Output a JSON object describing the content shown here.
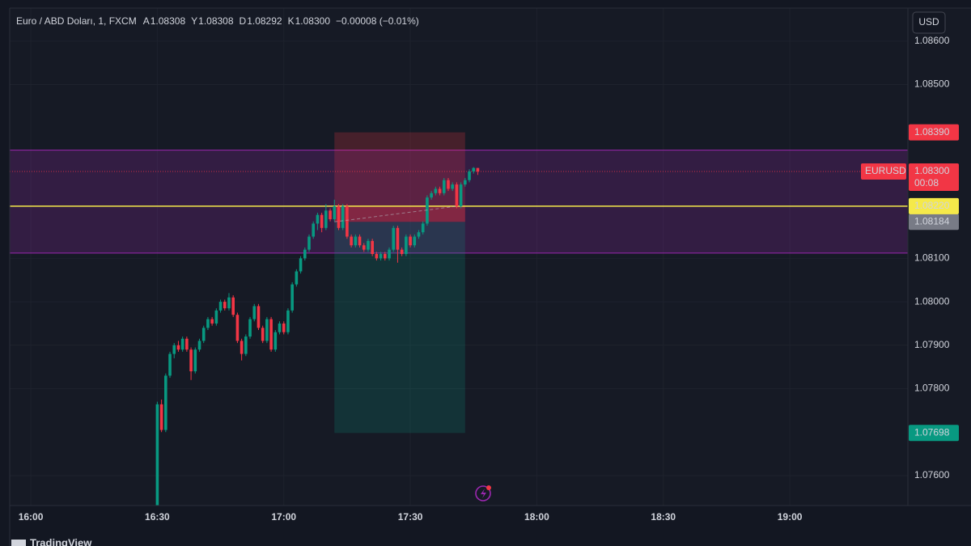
{
  "chart_data": {
    "type": "candlestick",
    "symbol_title": "Euro / ABD Doları, 1, FXCM",
    "header_fields": [
      {
        "label": "A",
        "value": "1.08308"
      },
      {
        "label": "Y",
        "value": "1.08308"
      },
      {
        "label": "D",
        "value": "1.08292"
      },
      {
        "label": "K",
        "value": "1.08300"
      }
    ],
    "change": "−0.00008 (−0.01%)",
    "currency": "USD",
    "brand": "TradingView",
    "up_color": "#089981",
    "down_color": "#f23645",
    "xlim": [
      "15:55",
      "19:28"
    ],
    "xticks": [
      "16:00",
      "16:30",
      "17:00",
      "17:30",
      "18:00",
      "18:30",
      "19:00"
    ],
    "ylim": [
      1.07531,
      1.08676
    ],
    "yticks": [
      {
        "value": 1.086,
        "label": "1.08600"
      },
      {
        "value": 1.085,
        "label": "1.08500"
      },
      {
        "value": 1.081,
        "label": "1.08100"
      },
      {
        "value": 1.08,
        "label": "1.08000"
      },
      {
        "value": 1.079,
        "label": "1.07900"
      },
      {
        "value": 1.078,
        "label": "1.07800"
      },
      {
        "value": 1.076,
        "label": "1.07600"
      }
    ],
    "grid": true,
    "x": [
      "16:30",
      "16:31",
      "16:32",
      "16:33",
      "16:34",
      "16:35",
      "16:36",
      "16:37",
      "16:38",
      "16:39",
      "16:40",
      "16:41",
      "16:42",
      "16:43",
      "16:44",
      "16:45",
      "16:46",
      "16:47",
      "16:48",
      "16:49",
      "16:50",
      "16:51",
      "16:52",
      "16:53",
      "16:54",
      "16:55",
      "16:56",
      "16:57",
      "16:58",
      "16:59",
      "17:00",
      "17:01",
      "17:02",
      "17:03",
      "17:04",
      "17:05",
      "17:06",
      "17:07",
      "17:08",
      "17:09",
      "17:10",
      "17:11",
      "17:12",
      "17:13",
      "17:14",
      "17:15",
      "17:16",
      "17:17",
      "17:18",
      "17:19",
      "17:20",
      "17:21",
      "17:22",
      "17:23",
      "17:24",
      "17:25",
      "17:26",
      "17:27",
      "17:28",
      "17:29",
      "17:30",
      "17:31",
      "17:32",
      "17:33",
      "17:34",
      "17:35",
      "17:36",
      "17:37",
      "17:38",
      "17:39",
      "17:40",
      "17:41",
      "17:42",
      "17:43",
      "17:44",
      "17:45",
      "17:46"
    ],
    "ohlc": [
      [
        1.07531,
        1.0777,
        1.07531,
        1.07764
      ],
      [
        1.07764,
        1.07775,
        1.077,
        1.07705
      ],
      [
        1.07705,
        1.07835,
        1.077,
        1.0783
      ],
      [
        1.0783,
        1.07885,
        1.07825,
        1.0788
      ],
      [
        1.0788,
        1.07905,
        1.0787,
        1.079
      ],
      [
        1.079,
        1.0791,
        1.07885,
        1.0789
      ],
      [
        1.0789,
        1.0792,
        1.07885,
        1.07915
      ],
      [
        1.07915,
        1.0792,
        1.07885,
        1.0789
      ],
      [
        1.0789,
        1.07895,
        1.0782,
        1.0784
      ],
      [
        1.0784,
        1.07895,
        1.07835,
        1.0789
      ],
      [
        1.0789,
        1.07915,
        1.07885,
        1.0791
      ],
      [
        1.0791,
        1.07945,
        1.07905,
        1.0794
      ],
      [
        1.0794,
        1.07965,
        1.07935,
        1.0796
      ],
      [
        1.0796,
        1.07965,
        1.07945,
        1.0795
      ],
      [
        1.0795,
        1.07985,
        1.07945,
        1.0798
      ],
      [
        1.0798,
        1.08005,
        1.07975,
        1.08
      ],
      [
        1.08,
        1.08005,
        1.0798,
        1.07985
      ],
      [
        1.07985,
        1.0802,
        1.0798,
        1.0801
      ],
      [
        1.0801,
        1.08015,
        1.07965,
        1.0797
      ],
      [
        1.0797,
        1.07975,
        1.07905,
        1.0791
      ],
      [
        1.0791,
        1.07915,
        1.07865,
        1.0788
      ],
      [
        1.0788,
        1.07925,
        1.07875,
        1.0792
      ],
      [
        1.0792,
        1.07965,
        1.07915,
        1.0796
      ],
      [
        1.0796,
        1.07995,
        1.07955,
        1.0799
      ],
      [
        1.0799,
        1.07995,
        1.07935,
        1.0794
      ],
      [
        1.0794,
        1.07945,
        1.07905,
        1.0791
      ],
      [
        1.0791,
        1.07965,
        1.07905,
        1.0796
      ],
      [
        1.0796,
        1.07965,
        1.07885,
        1.0789
      ],
      [
        1.0789,
        1.07935,
        1.07885,
        1.0793
      ],
      [
        1.0793,
        1.07955,
        1.07925,
        1.0795
      ],
      [
        1.0795,
        1.07955,
        1.07925,
        1.0793
      ],
      [
        1.0793,
        1.07985,
        1.07925,
        1.0798
      ],
      [
        1.0798,
        1.08045,
        1.07975,
        1.0804
      ],
      [
        1.0804,
        1.08075,
        1.08035,
        1.0807
      ],
      [
        1.0807,
        1.08105,
        1.08065,
        1.081
      ],
      [
        1.081,
        1.08125,
        1.08095,
        1.0812
      ],
      [
        1.0812,
        1.08155,
        1.08115,
        1.0815
      ],
      [
        1.0815,
        1.08185,
        1.08145,
        1.0818
      ],
      [
        1.0818,
        1.08205,
        1.08165,
        1.082
      ],
      [
        1.082,
        1.08205,
        1.0816,
        1.0817
      ],
      [
        1.0817,
        1.08225,
        1.08165,
        1.0821
      ],
      [
        1.0821,
        1.08215,
        1.08185,
        1.0819
      ],
      [
        1.0819,
        1.08235,
        1.08185,
        1.0822
      ],
      [
        1.0822,
        1.08225,
        1.08165,
        1.0817
      ],
      [
        1.0817,
        1.08225,
        1.08165,
        1.0822
      ],
      [
        1.0822,
        1.08225,
        1.08145,
        1.0815
      ],
      [
        1.0815,
        1.08155,
        1.08125,
        1.0813
      ],
      [
        1.0813,
        1.08155,
        1.08125,
        1.0815
      ],
      [
        1.0815,
        1.08155,
        1.08125,
        1.0813
      ],
      [
        1.0813,
        1.08135,
        1.08115,
        1.0812
      ],
      [
        1.0812,
        1.08145,
        1.08115,
        1.0814
      ],
      [
        1.0814,
        1.08145,
        1.08105,
        1.0811
      ],
      [
        1.0811,
        1.08115,
        1.08095,
        1.081
      ],
      [
        1.081,
        1.08115,
        1.08095,
        1.0811
      ],
      [
        1.0811,
        1.08115,
        1.08095,
        1.081
      ],
      [
        1.081,
        1.08125,
        1.08095,
        1.0812
      ],
      [
        1.0812,
        1.08175,
        1.08115,
        1.0817
      ],
      [
        1.0817,
        1.08175,
        1.0809,
        1.0812
      ],
      [
        1.0812,
        1.08125,
        1.08105,
        1.0811
      ],
      [
        1.0811,
        1.08155,
        1.08105,
        1.0815
      ],
      [
        1.0815,
        1.08155,
        1.08125,
        1.0813
      ],
      [
        1.0813,
        1.08155,
        1.08125,
        1.0815
      ],
      [
        1.0815,
        1.08165,
        1.08145,
        1.0816
      ],
      [
        1.0816,
        1.08185,
        1.08155,
        1.0818
      ],
      [
        1.0818,
        1.08245,
        1.08175,
        1.0824
      ],
      [
        1.0824,
        1.08255,
        1.08235,
        1.0825
      ],
      [
        1.0825,
        1.08265,
        1.08245,
        1.0826
      ],
      [
        1.0826,
        1.08265,
        1.08245,
        1.0825
      ],
      [
        1.0825,
        1.08285,
        1.08245,
        1.0828
      ],
      [
        1.0828,
        1.08285,
        1.08255,
        1.0826
      ],
      [
        1.0826,
        1.08275,
        1.08255,
        1.0827
      ],
      [
        1.0827,
        1.08275,
        1.08215,
        1.0822
      ],
      [
        1.0822,
        1.08275,
        1.08215,
        1.0827
      ],
      [
        1.0827,
        1.08285,
        1.08265,
        1.0828
      ],
      [
        1.0828,
        1.08305,
        1.08275,
        1.083
      ],
      [
        1.083,
        1.0831,
        1.08295,
        1.08308
      ],
      [
        1.08308,
        1.08308,
        1.08292,
        1.083
      ]
    ],
    "zone": {
      "low": 1.08112,
      "high": 1.08349,
      "color": "#9c27b0"
    },
    "level": {
      "value": 1.0822,
      "label": "1.08220",
      "color": "#f5e94a"
    },
    "position": {
      "start": "17:12",
      "end": "17:43",
      "entry": {
        "value": 1.08184,
        "label": "1.08184"
      },
      "stop": {
        "value": 1.0839,
        "label": "1.08390"
      },
      "target": {
        "value": 1.07698,
        "label": "1.07698"
      }
    },
    "last_price": {
      "value": 1.083,
      "label": "1.08300",
      "symbol": "EURUSD",
      "countdown": "00:08"
    }
  }
}
